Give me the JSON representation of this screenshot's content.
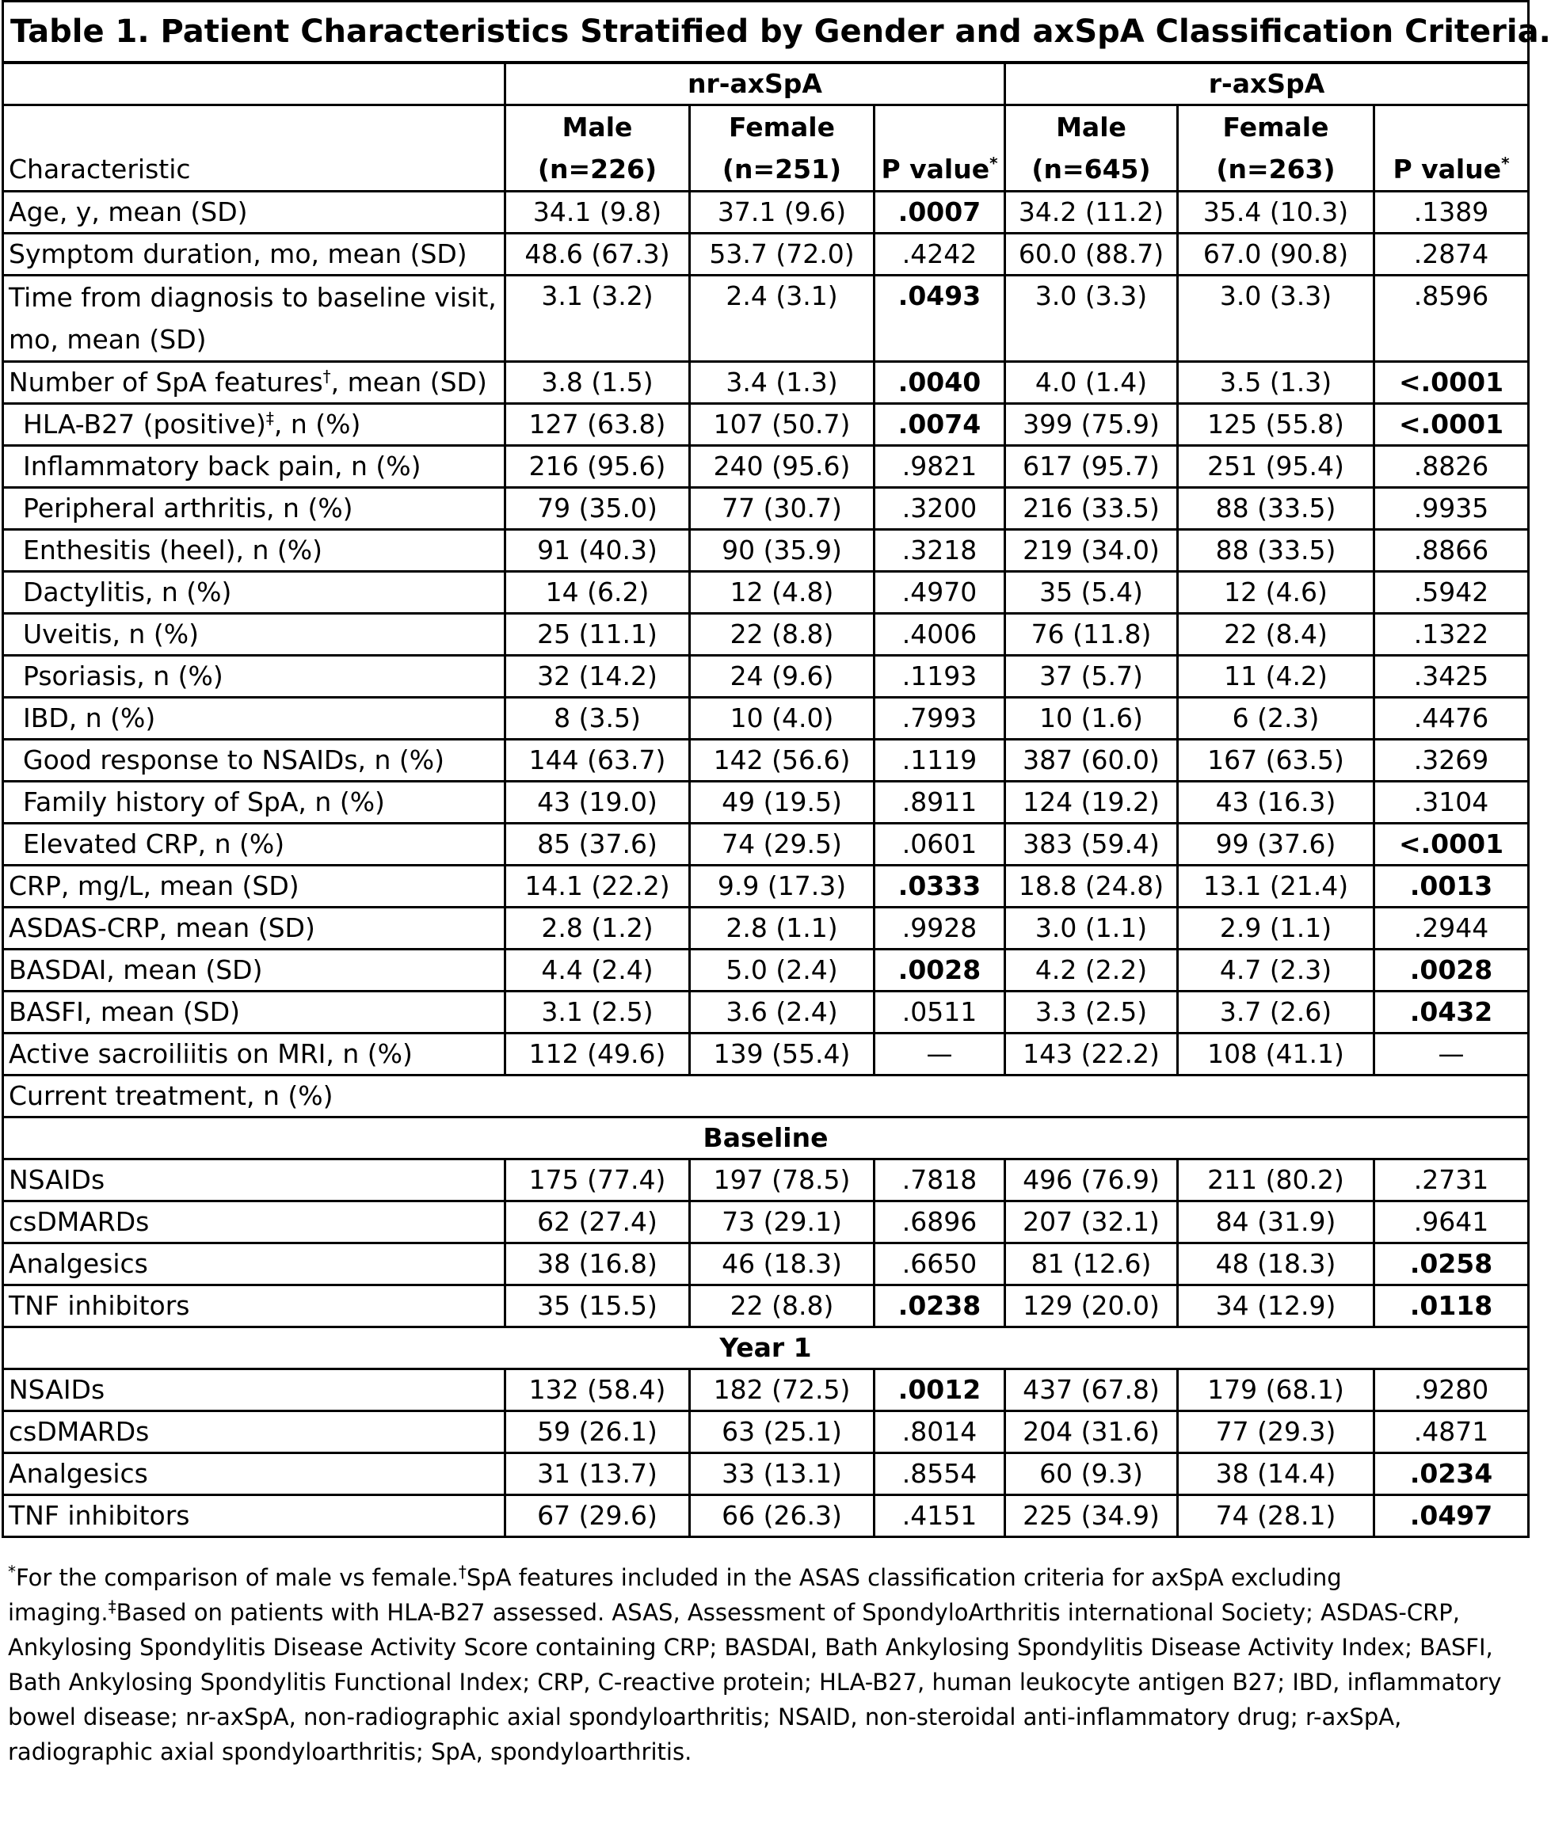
{
  "title": "Table 1. Patient Characteristics Stratified by Gender and axSpA Classification Criteria.",
  "groups": {
    "nr": "nr-axSpA",
    "r": "r-axSpA"
  },
  "header": {
    "characteristic": "Characteristic",
    "nr_male_1": "Male",
    "nr_male_2": "(n=226)",
    "nr_female_1": "Female",
    "nr_female_2": "(n=251)",
    "p_value": "P value",
    "p_mark": "*",
    "r_male_1": "Male",
    "r_male_2": "(n=645)",
    "r_female_1": "Female",
    "r_female_2": "(n=263)"
  },
  "rows": [
    {
      "label": "Age, y, mean (SD)",
      "nm": "34.1 (9.8)",
      "nf": "37.1 (9.6)",
      "np": ".0007",
      "rm": "34.2 (11.2)",
      "rf": "35.4 (10.3)",
      "rp": ".1389"
    },
    {
      "label": "Symptom duration, mo, mean (SD)",
      "nm": "48.6 (67.3)",
      "nf": "53.7 (72.0)",
      "np": ".4242",
      "rm": "60.0 (88.7)",
      "rf": "67.0 (90.8)",
      "rp": ".2874"
    },
    {
      "label": "Time from diagnosis to baseline visit, mo, mean (SD)",
      "nm": "3.1 (3.2)",
      "nf": "2.4 (3.1)",
      "np": ".0493",
      "rm": "3.0 (3.3)",
      "rf": "3.0 (3.3)",
      "rp": ".8596"
    },
    {
      "label": "Number of SpA features",
      "mark": "†",
      "label_tail": ", mean (SD)",
      "nm": "3.8 (1.5)",
      "nf": "3.4 (1.3)",
      "np": ".0040",
      "rm": "4.0 (1.4)",
      "rf": "3.5 (1.3)",
      "rp": "<.0001"
    },
    {
      "label": "HLA-B27 (positive)",
      "mark": "‡",
      "label_tail": ", n (%)",
      "nm": "127 (63.8)",
      "nf": "107 (50.7)",
      "np": ".0074",
      "rm": "399 (75.9)",
      "rf": "125 (55.8)",
      "rp": "<.0001"
    },
    {
      "label": "Inflammatory back pain, n (%)",
      "nm": "216 (95.6)",
      "nf": "240 (95.6)",
      "np": ".9821",
      "rm": "617 (95.7)",
      "rf": "251 (95.4)",
      "rp": ".8826"
    },
    {
      "label": "Peripheral arthritis, n (%)",
      "nm": "79 (35.0)",
      "nf": "77 (30.7)",
      "np": ".3200",
      "rm": "216 (33.5)",
      "rf": "88 (33.5)",
      "rp": ".9935"
    },
    {
      "label": "Enthesitis (heel), n (%)",
      "nm": "91 (40.3)",
      "nf": "90 (35.9)",
      "np": ".3218",
      "rm": "219 (34.0)",
      "rf": "88 (33.5)",
      "rp": ".8866"
    },
    {
      "label": "Dactylitis, n (%)",
      "nm": "14 (6.2)",
      "nf": "12 (4.8)",
      "np": ".4970",
      "rm": "35 (5.4)",
      "rf": "12 (4.6)",
      "rp": ".5942"
    },
    {
      "label": "Uveitis, n (%)",
      "nm": "25 (11.1)",
      "nf": "22 (8.8)",
      "np": ".4006",
      "rm": "76 (11.8)",
      "rf": "22 (8.4)",
      "rp": ".1322"
    },
    {
      "label": "Psoriasis, n (%)",
      "nm": "32 (14.2)",
      "nf": "24 (9.6)",
      "np": ".1193",
      "rm": "37 (5.7)",
      "rf": "11 (4.2)",
      "rp": ".3425"
    },
    {
      "label": "IBD, n (%)",
      "nm": "8 (3.5)",
      "nf": "10 (4.0)",
      "np": ".7993",
      "rm": "10 (1.6)",
      "rf": "6 (2.3)",
      "rp": ".4476"
    },
    {
      "label": "Good response to NSAIDs, n (%)",
      "nm": "144 (63.7)",
      "nf": "142 (56.6)",
      "np": ".1119",
      "rm": "387 (60.0)",
      "rf": "167 (63.5)",
      "rp": ".3269"
    },
    {
      "label": "Family history of SpA, n (%)",
      "nm": "43 (19.0)",
      "nf": "49 (19.5)",
      "np": ".8911",
      "rm": "124 (19.2)",
      "rf": "43 (16.3)",
      "rp": ".3104"
    },
    {
      "label": "Elevated CRP, n (%)",
      "nm": "85 (37.6)",
      "nf": "74 (29.5)",
      "np": ".0601",
      "rm": "383 (59.4)",
      "rf": "99 (37.6)",
      "rp": "<.0001"
    },
    {
      "label": "CRP, mg/L, mean (SD)",
      "nm": "14.1 (22.2)",
      "nf": "9.9 (17.3)",
      "np": ".0333",
      "rm": "18.8 (24.8)",
      "rf": "13.1 (21.4)",
      "rp": ".0013"
    },
    {
      "label": "ASDAS-CRP, mean (SD)",
      "nm": "2.8 (1.2)",
      "nf": "2.8 (1.1)",
      "np": ".9928",
      "rm": "3.0 (1.1)",
      "rf": "2.9 (1.1)",
      "rp": ".2944"
    },
    {
      "label": "BASDAI, mean (SD)",
      "nm": "4.4 (2.4)",
      "nf": "5.0 (2.4)",
      "np": ".0028",
      "rm": "4.2 (2.2)",
      "rf": "4.7 (2.3)",
      "rp": ".0028"
    },
    {
      "label": "BASFI, mean (SD)",
      "nm": "3.1 (2.5)",
      "nf": "3.6 (2.4)",
      "np": ".0511",
      "rm": "3.3 (2.5)",
      "rf": "3.7 (2.6)",
      "rp": ".0432"
    },
    {
      "label": "Active sacroiliitis on MRI, n (%)",
      "nm": "112 (49.6)",
      "nf": "139 (55.4)",
      "np": "—",
      "rm": "143 (22.2)",
      "rf": "108 (41.1)",
      "rp": "—"
    }
  ],
  "treatment_label": "Current treatment, n (%)",
  "baseline_label": "Baseline",
  "baseline_rows": [
    {
      "label": "NSAIDs",
      "nm": "175 (77.4)",
      "nf": "197 (78.5)",
      "np": ".7818",
      "rm": "496 (76.9)",
      "rf": "211 (80.2)",
      "rp": ".2731"
    },
    {
      "label": "csDMARDs",
      "nm": "62 (27.4)",
      "nf": "73 (29.1)",
      "np": ".6896",
      "rm": "207 (32.1)",
      "rf": "84 (31.9)",
      "rp": ".9641"
    },
    {
      "label": "Analgesics",
      "nm": "38 (16.8)",
      "nf": "46 (18.3)",
      "np": ".6650",
      "rm": "81 (12.6)",
      "rf": "48 (18.3)",
      "rp": ".0258"
    },
    {
      "label": "TNF inhibitors",
      "nm": "35 (15.5)",
      "nf": "22 (8.8)",
      "np": ".0238",
      "rm": "129 (20.0)",
      "rf": "34 (12.9)",
      "rp": ".0118"
    }
  ],
  "year1_label": "Year 1",
  "year1_rows": [
    {
      "label": "NSAIDs",
      "nm": "132 (58.4)",
      "nf": "182 (72.5)",
      "np": ".0012",
      "rm": "437 (67.8)",
      "rf": "179 (68.1)",
      "rp": ".9280"
    },
    {
      "label": "csDMARDs",
      "nm": "59 (26.1)",
      "nf": "63 (25.1)",
      "np": ".8014",
      "rm": "204 (31.6)",
      "rf": "77 (29.3)",
      "rp": ".4871"
    },
    {
      "label": "Analgesics",
      "nm": "31 (13.7)",
      "nf": "33 (13.1)",
      "np": ".8554",
      "rm": "60 (9.3)",
      "rf": "38 (14.4)",
      "rp": ".0234"
    },
    {
      "label": "TNF inhibitors",
      "nm": "67 (29.6)",
      "nf": "66 (26.3)",
      "np": ".4151",
      "rm": "225 (34.9)",
      "rf": "74 (28.1)",
      "rp": ".0497"
    }
  ],
  "footnote": {
    "m1": "*",
    "t1": "For the comparison of male vs female.",
    "m2": "†",
    "t2": "SpA features included in the ASAS classification criteria for axSpA excluding imaging.",
    "m3": "‡",
    "t3": "Based on patients with HLA-B27 assessed. ASAS, Assessment of SpondyloArthritis international Society; ASDAS-CRP, Ankylosing Spondylitis Disease Activity Score containing CRP; BASDAI, Bath Ankylosing Spondylitis Disease Activity Index; BASFI, Bath Ankylosing Spondylitis Functional Index; CRP, C-reactive protein; HLA-B27, human leukocyte antigen B27; IBD, inflammatory bowel disease; nr-axSpA, non-radiographic axial spondyloarthritis; NSAID, non-steroidal anti-inflammatory drug; r-axSpA, radiographic axial spondyloarthritis; SpA, spondyloarthritis."
  }
}
